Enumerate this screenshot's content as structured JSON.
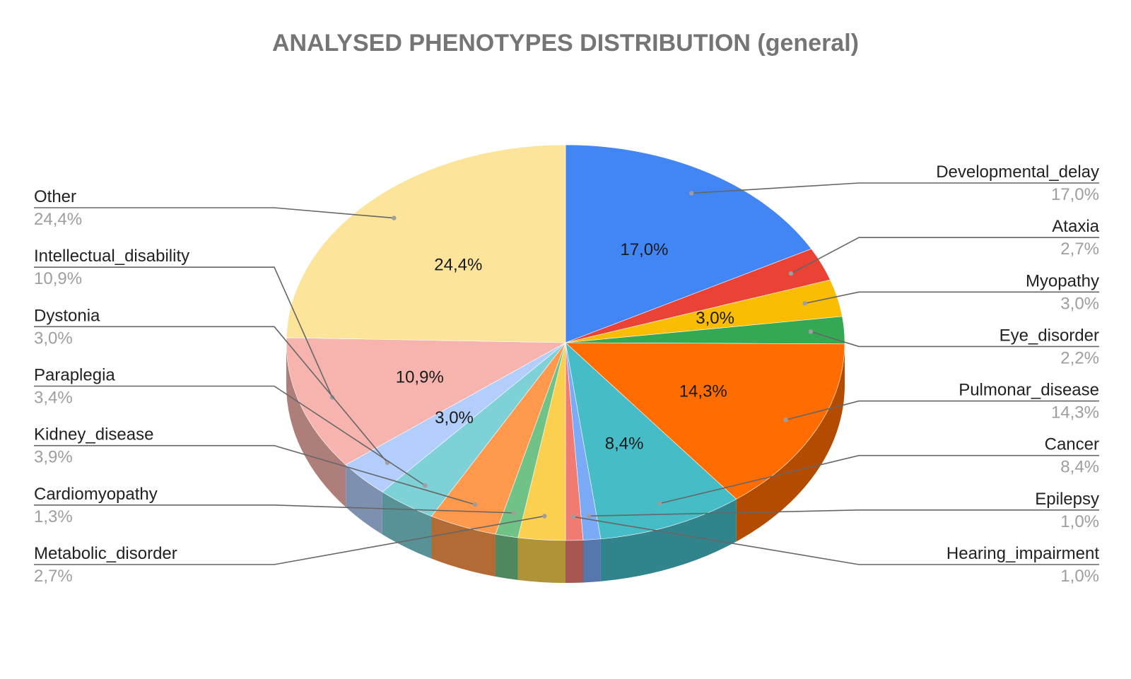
{
  "chart_data": {
    "type": "pie",
    "title": "ANALYSED PHENOTYPES DISTRIBUTION (general)",
    "slices": [
      {
        "name": "Developmental_delay",
        "value": 17.0,
        "label": "17,0%",
        "color": "#4285f4"
      },
      {
        "name": "Ataxia",
        "value": 2.7,
        "label": "2,7%",
        "color": "#ea4335"
      },
      {
        "name": "Myopathy",
        "value": 3.0,
        "label": "3,0%",
        "color": "#fbbc04"
      },
      {
        "name": "Eye_disorder",
        "value": 2.2,
        "label": "2,2%",
        "color": "#34a853"
      },
      {
        "name": "Pulmonar_disease",
        "value": 14.3,
        "label": "14,3%",
        "color": "#ff6d01"
      },
      {
        "name": "Cancer",
        "value": 8.4,
        "label": "8,4%",
        "color": "#46bdc6"
      },
      {
        "name": "Epilepsy",
        "value": 1.0,
        "label": "1,0%",
        "color": "#7baaf7"
      },
      {
        "name": "Hearing_impairment",
        "value": 1.0,
        "label": "1,0%",
        "color": "#f07b72"
      },
      {
        "name": "Metabolic_disorder",
        "value": 2.7,
        "label": "2,7%",
        "color": "#fcd04f"
      },
      {
        "name": "Cardiomyopathy",
        "value": 1.3,
        "label": "1,3%",
        "color": "#71c287"
      },
      {
        "name": "Kidney_disease",
        "value": 3.9,
        "label": "3,9%",
        "color": "#ff994d"
      },
      {
        "name": "Paraplegia",
        "value": 3.4,
        "label": "3,4%",
        "color": "#7ed1d7"
      },
      {
        "name": "Dystonia",
        "value": 3.0,
        "label": "3,0%",
        "color": "#b3cefb"
      },
      {
        "name": "Intellectual_disability",
        "value": 10.9,
        "label": "10,9%",
        "color": "#f7b4ae"
      },
      {
        "name": "Other",
        "value": 24.4,
        "label": "24,4%",
        "color": "#fde49b"
      }
    ],
    "inner_labels": [
      "17,0%",
      "3,0%",
      "14,3%",
      "8,4%",
      "10,9%",
      "24,4%"
    ],
    "legend": "callouts"
  }
}
